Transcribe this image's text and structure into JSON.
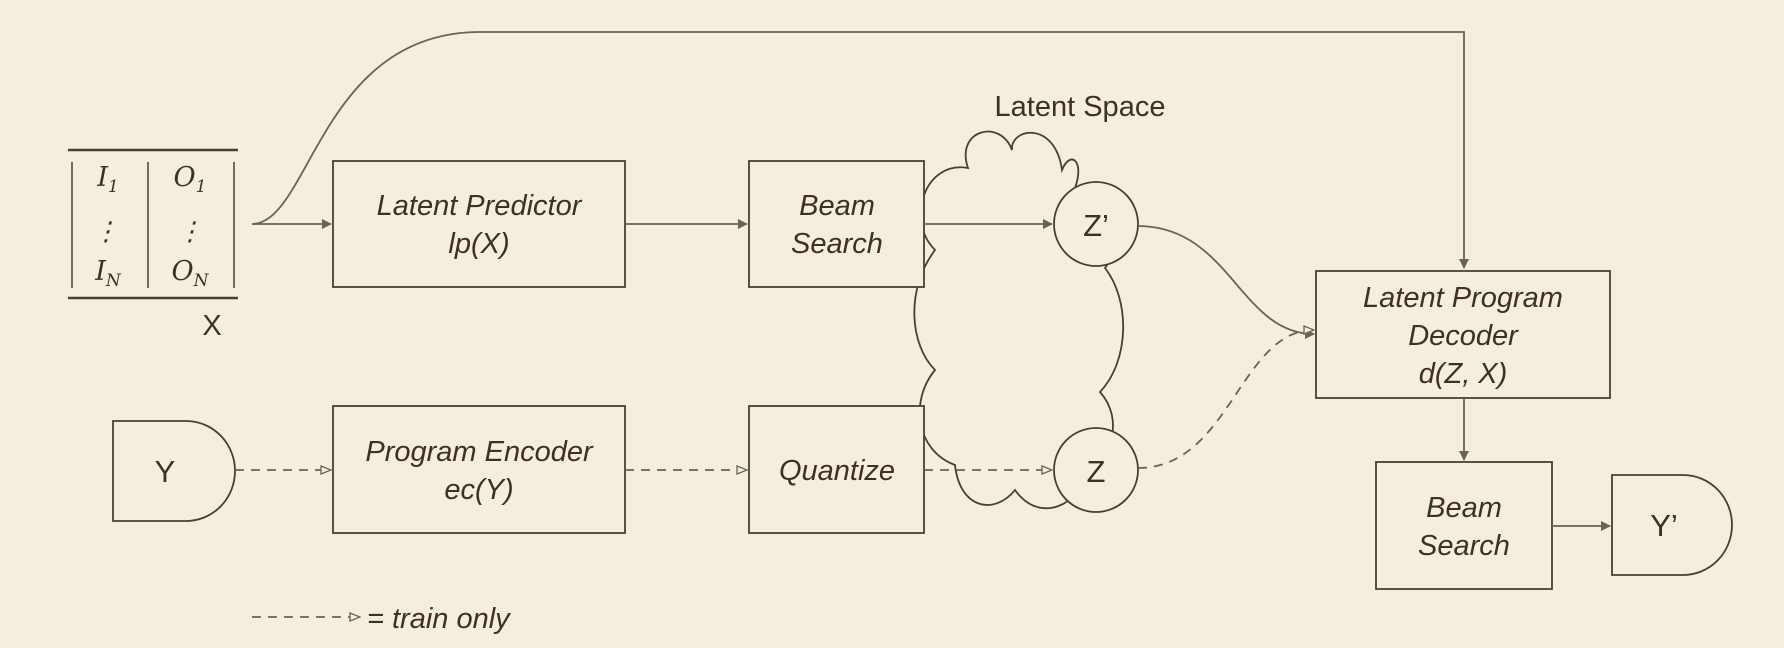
{
  "input_table": {
    "rows": [
      {
        "i": "I",
        "i_sub": "1",
        "o": "O",
        "o_sub": "1"
      },
      {
        "i": "⋮",
        "i_sub": "",
        "o": "⋮",
        "o_sub": ""
      },
      {
        "i": "I",
        "i_sub": "N",
        "o": "O",
        "o_sub": "N"
      }
    ],
    "label": "X"
  },
  "boxes": {
    "latent_predictor": {
      "line1": "Latent Predictor",
      "line2": "lp(X)"
    },
    "beam_search_top": {
      "line1": "Beam",
      "line2": "Search"
    },
    "program_encoder": {
      "line1": "Program Encoder",
      "line2": "ec(Y)"
    },
    "quantize": {
      "label": "Quantize"
    },
    "decoder": {
      "line1": "Latent Program",
      "line2": "Decoder",
      "line3": "d(Z, X)"
    },
    "beam_search_bottom": {
      "line1": "Beam",
      "line2": "Search"
    }
  },
  "latent_space": {
    "title": "Latent Space",
    "z_prime": "Z’",
    "z": "Z"
  },
  "io": {
    "y_input": "Y",
    "y_output": "Y’"
  },
  "legend": {
    "text": "= train only"
  },
  "colors": {
    "background": "#f6eedd",
    "stroke": "#4a3e33",
    "arrow": "#6b6158"
  }
}
